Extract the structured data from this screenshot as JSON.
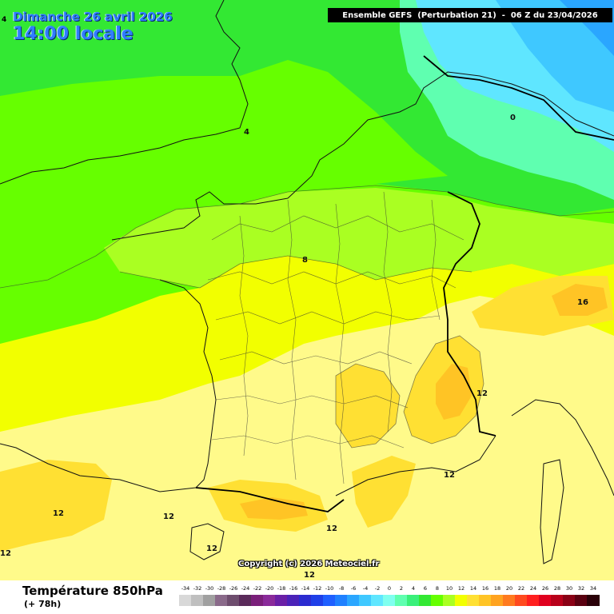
{
  "header": {
    "date": "Dimanche 26 avril 2026",
    "time": "14:00 locale",
    "corner_number": "4",
    "run": "Ensemble GEFS  (Perturbation 21)  -  06 Z du 23/04/2026"
  },
  "map": {
    "isotherm_labels": [
      "4",
      "0",
      "8",
      "16",
      "12",
      "12",
      "12",
      "12",
      "12",
      "12",
      "12",
      "12"
    ],
    "copyright": "Copyright (c) 2026 Meteociel.fr"
  },
  "legend": {
    "variable": "Température 850hPa",
    "lead_time": "(+ 78h)",
    "values": [
      "-34",
      "-32",
      "-30",
      "-28",
      "-26",
      "-24",
      "-22",
      "-20",
      "-18",
      "-16",
      "-14",
      "-12",
      "-10",
      "-8",
      "-6",
      "-4",
      "-2",
      "0",
      "2",
      "4",
      "6",
      "8",
      "10",
      "12",
      "14",
      "16",
      "18",
      "20",
      "22",
      "24",
      "26",
      "28",
      "30",
      "32",
      "34"
    ],
    "colors": [
      "#d8d8d8",
      "#bfbfbf",
      "#a0a0a0",
      "#8a6a8a",
      "#6e4d6e",
      "#5a2a5a",
      "#7a1f7a",
      "#8a2a9a",
      "#6a1fa6",
      "#4b22b8",
      "#2b2bd0",
      "#1f3fe8",
      "#1f5fff",
      "#1f80ff",
      "#2aa6ff",
      "#3fc8ff",
      "#5fe6ff",
      "#7fffef",
      "#5fffb0",
      "#39f07a",
      "#33e833",
      "#66ff00",
      "#aaff22",
      "#f2ff00",
      "#ffe033",
      "#ffc425",
      "#ffa31f",
      "#ff7a1f",
      "#ff4a1f",
      "#ff1f1f",
      "#e0001f",
      "#b8001a",
      "#8a0015",
      "#5a0010",
      "#2a0008"
    ]
  }
}
